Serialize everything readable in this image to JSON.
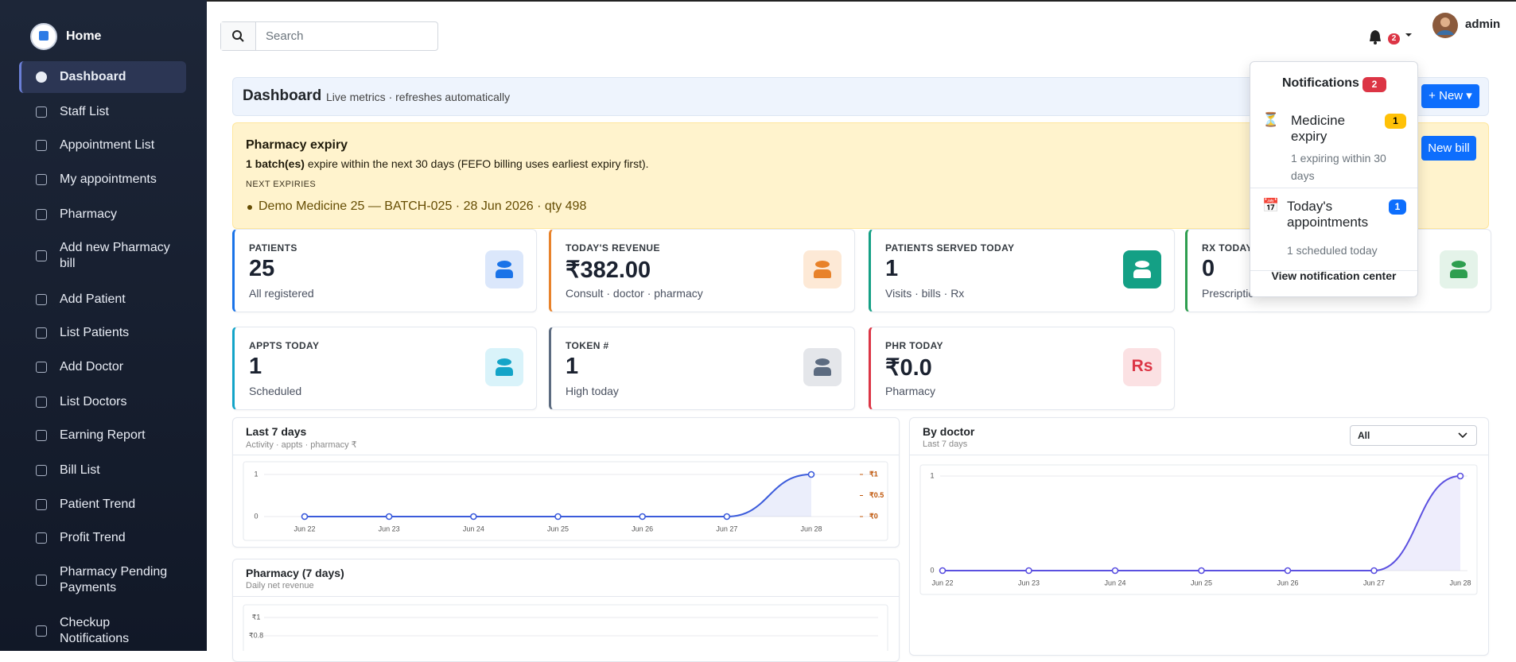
{
  "sidebar": {
    "brand": "Home",
    "items": [
      "Dashboard",
      "Staff List",
      "Appointment List",
      "My appointments",
      "Pharmacy",
      "Add new Pharmacy bill",
      "Add Patient",
      "List Patients",
      "Add Doctor",
      "List Doctors",
      "Earning Report",
      "Bill List",
      "Patient Trend",
      "Profit Trend",
      "Pharmacy Pending Payments",
      "Checkup Notifications"
    ]
  },
  "topbar": {
    "search_placeholder": "Search",
    "notification_count": 2,
    "user": "admin"
  },
  "header": {
    "title": "Dashboard",
    "subtitle": "Live metrics · refreshes automatically",
    "new_button": "New"
  },
  "alert": {
    "title": "Pharmacy expiry",
    "count_text": "1 batch(es)",
    "text": "expire within the next 30 days (FEFO billing uses earliest expiry first).",
    "section": "NEXT EXPIRIES",
    "items": [
      "Demo Medicine 25 — BATCH-025 · 28 Jun 2026 · qty 498"
    ],
    "button": "New bill"
  },
  "stats": [
    {
      "label": "PATIENTS",
      "value": "25",
      "sub": "All registered",
      "color": "#1a73e8"
    },
    {
      "label": "TODAY'S REVENUE",
      "value": "₹382.00",
      "sub": "Consult · doctor · pharmacy",
      "color": "#e8822a"
    },
    {
      "label": "PATIENTS SERVED TODAY",
      "value": "1",
      "sub": "Visits · bills · Rx",
      "color": "#14a085"
    },
    {
      "label": "RX TODAY",
      "value": "0",
      "sub": "Prescriptions",
      "color": "#2e9e4f"
    },
    {
      "label": "APPTS TODAY",
      "value": "1",
      "sub": "Scheduled",
      "color": "#13a4c8"
    },
    {
      "label": "TOKEN #",
      "value": "1",
      "sub": "High today",
      "color": "#5c6b80"
    },
    {
      "label": "PHR TODAY",
      "value": "₹0.0",
      "sub": "Pharmacy",
      "color": "#dc3545",
      "icon_text": "Rs"
    }
  ],
  "notifications": {
    "title": "Notifications",
    "count": 2,
    "items": [
      {
        "icon": "⏳",
        "title": "Medicine expiry",
        "count": 1,
        "detail": "1 expiring within 30 days"
      },
      {
        "icon": "📅",
        "title": "Today's appointments",
        "count": 1,
        "detail": "1 scheduled today"
      }
    ],
    "footer": "View notification center"
  },
  "chart_data": [
    {
      "type": "line",
      "title": "Last 7 days",
      "subtitle": "Activity · appts · pharmacy ₹",
      "categories": [
        "Jun 22",
        "Jun 23",
        "Jun 24",
        "Jun 25",
        "Jun 26",
        "Jun 27",
        "Jun 28"
      ],
      "values": [
        0,
        0,
        0,
        0,
        0,
        0,
        1
      ],
      "color": "#3b5bdb",
      "ylim": [
        0,
        1
      ],
      "yticks": [
        0,
        1
      ],
      "y2lim": [
        0,
        1
      ],
      "y2ticks": [
        {
          "value": 0,
          "label": "₹0"
        },
        {
          "value": 0.5,
          "label": "₹0.5"
        },
        {
          "value": 1,
          "label": "₹1"
        }
      ]
    },
    {
      "type": "line",
      "title": "By doctor",
      "subtitle": "Last 7 days",
      "filter": "All",
      "categories": [
        "Jun 22",
        "Jun 23",
        "Jun 24",
        "Jun 25",
        "Jun 26",
        "Jun 27",
        "Jun 28"
      ],
      "values": [
        0,
        0,
        0,
        0,
        0,
        0,
        1
      ],
      "color": "#5b50e0",
      "ylim": [
        0,
        1
      ],
      "yticks": [
        0,
        1
      ]
    },
    {
      "type": "line",
      "title": "Pharmacy (7 days)",
      "subtitle": "Daily net revenue",
      "ylim": [
        0,
        1
      ],
      "yticks": [
        {
          "value": 1,
          "label": "₹1"
        },
        {
          "value": 0.8,
          "label": "₹0.8"
        }
      ]
    }
  ]
}
